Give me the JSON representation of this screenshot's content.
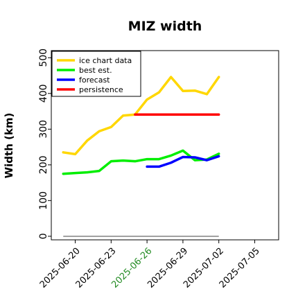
{
  "chart_data": {
    "type": "line",
    "title": "MIZ width",
    "xlabel": "",
    "ylabel": "Width (km)",
    "xlim": [
      "2025-06-18",
      "2025-07-07"
    ],
    "ylim": [
      -10,
      520
    ],
    "yticks": [
      0,
      100,
      200,
      300,
      400,
      500
    ],
    "xticks": [
      {
        "label": "2025-06-20",
        "date": "2025-06-20",
        "color": "#000000"
      },
      {
        "label": "2025-06-23",
        "date": "2025-06-23",
        "color": "#000000"
      },
      {
        "label": "2025-06-26",
        "date": "2025-06-26",
        "color": "#228b22"
      },
      {
        "label": "2025-06-29",
        "date": "2025-06-29",
        "color": "#000000"
      },
      {
        "label": "2025-07-02",
        "date": "2025-07-02",
        "color": "#000000"
      },
      {
        "label": "2025-07-05",
        "date": "2025-07-05",
        "color": "#000000"
      }
    ],
    "legend_position": "upper-left",
    "series": [
      {
        "name": "ice chart data",
        "color": "#ffd700",
        "x": [
          "2025-06-19",
          "2025-06-20",
          "2025-06-21",
          "2025-06-22",
          "2025-06-23",
          "2025-06-24",
          "2025-06-25",
          "2025-06-26",
          "2025-06-27",
          "2025-06-28",
          "2025-06-29",
          "2025-06-30",
          "2025-07-01",
          "2025-07-02"
        ],
        "y": [
          235,
          230,
          268,
          294,
          306,
          338,
          341,
          383,
          403,
          446,
          407,
          408,
          398,
          446
        ]
      },
      {
        "name": "best est.",
        "color": "#00ee00",
        "x": [
          "2025-06-19",
          "2025-06-20",
          "2025-06-21",
          "2025-06-22",
          "2025-06-23",
          "2025-06-24",
          "2025-06-25",
          "2025-06-26",
          "2025-06-27",
          "2025-06-28",
          "2025-06-29",
          "2025-06-30",
          "2025-07-01",
          "2025-07-02"
        ],
        "y": [
          175,
          177,
          179,
          183,
          210,
          212,
          210,
          216,
          216,
          226,
          240,
          213,
          215,
          231
        ]
      },
      {
        "name": "forecast",
        "color": "#0000ff",
        "x": [
          "2025-06-26",
          "2025-06-27",
          "2025-06-28",
          "2025-06-29",
          "2025-06-30",
          "2025-07-01",
          "2025-07-02"
        ],
        "y": [
          195,
          195,
          206,
          222,
          221,
          213,
          224
        ]
      },
      {
        "name": "persistence",
        "color": "#ff0000",
        "x": [
          "2025-06-25",
          "2025-07-02"
        ],
        "y": [
          341,
          341
        ]
      }
    ],
    "reference_line": {
      "color": "#808080",
      "x": [
        "2025-06-19",
        "2025-07-02"
      ],
      "y": [
        0,
        0
      ]
    }
  }
}
